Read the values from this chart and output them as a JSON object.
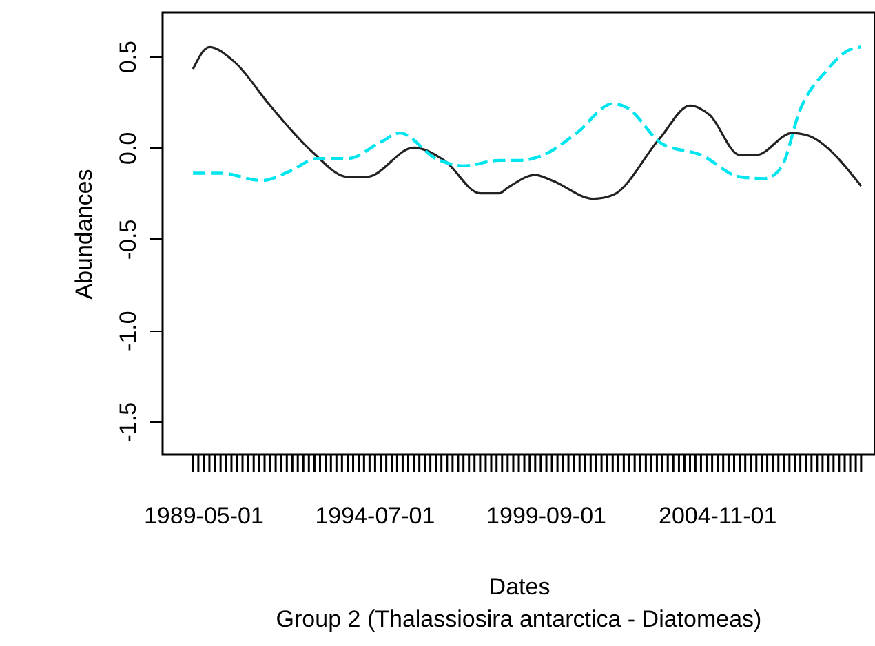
{
  "chart_data": {
    "type": "line",
    "subtitle": "Group 2 (Thalassiosira antarctica - Diatomeas)",
    "xlabel": "Dates",
    "ylabel": "Abundances",
    "xlim": [
      "1988-02",
      "2009-08"
    ],
    "ylim": [
      -1.68,
      0.74
    ],
    "yticks": [
      {
        "value": 0.5,
        "label": "0.5"
      },
      {
        "value": 0,
        "label": "0.0"
      },
      {
        "value": -0.5,
        "label": "-0.5"
      },
      {
        "value": -1,
        "label": "-1.0"
      },
      {
        "value": -1.5,
        "label": "-1.5"
      }
    ],
    "xticks": [
      {
        "value": "1989-01",
        "label": null
      },
      {
        "value": "1989-03",
        "label": null
      },
      "1989-05-01",
      {
        "value": "1989-07",
        "label": null
      },
      {
        "value": "1989-09",
        "label": null
      },
      {
        "value": "1989-11",
        "label": null
      },
      {
        "value": "1990-01",
        "label": null
      },
      {
        "value": "1990-03",
        "label": null
      },
      {
        "value": "1990-05",
        "label": null
      },
      {
        "value": "1990-07",
        "label": null
      },
      {
        "value": "1990-09",
        "label": null
      },
      {
        "value": "1990-11",
        "label": null
      },
      {
        "value": "1991-01",
        "label": null
      },
      {
        "value": "1991-03",
        "label": null
      },
      {
        "value": "1991-05",
        "label": null
      },
      {
        "value": "1991-07",
        "label": null
      },
      {
        "value": "1991-09",
        "label": null
      },
      {
        "value": "1991-11",
        "label": null
      },
      {
        "value": "1992-01",
        "label": null
      },
      {
        "value": "1992-03",
        "label": null
      },
      {
        "value": "1992-05",
        "label": null
      },
      {
        "value": "1992-07",
        "label": null
      },
      {
        "value": "1992-09",
        "label": null
      },
      {
        "value": "1992-11",
        "label": null
      },
      {
        "value": "1993-01",
        "label": null
      },
      {
        "value": "1993-03",
        "label": null
      },
      {
        "value": "1993-05",
        "label": null
      },
      {
        "value": "1993-07",
        "label": null
      },
      {
        "value": "1993-09",
        "label": null
      },
      {
        "value": "1993-11",
        "label": null
      },
      {
        "value": "1994-01",
        "label": null
      },
      {
        "value": "1994-03",
        "label": null
      },
      {
        "value": "1994-05",
        "label": null
      },
      "1994-07-01",
      {
        "value": "1994-09",
        "label": null
      },
      {
        "value": "1994-11",
        "label": null
      },
      {
        "value": "1995-01",
        "label": null
      },
      {
        "value": "1995-03",
        "label": null
      },
      {
        "value": "1995-05",
        "label": null
      },
      {
        "value": "1995-07",
        "label": null
      },
      {
        "value": "1995-09",
        "label": null
      },
      {
        "value": "1995-11",
        "label": null
      },
      {
        "value": "1996-01",
        "label": null
      },
      {
        "value": "1996-03",
        "label": null
      },
      {
        "value": "1996-05",
        "label": null
      },
      {
        "value": "1996-07",
        "label": null
      },
      {
        "value": "1996-09",
        "label": null
      },
      {
        "value": "1996-11",
        "label": null
      },
      {
        "value": "1997-01",
        "label": null
      },
      {
        "value": "1997-03",
        "label": null
      },
      {
        "value": "1997-05",
        "label": null
      },
      {
        "value": "1997-07",
        "label": null
      },
      {
        "value": "1997-09",
        "label": null
      },
      {
        "value": "1997-11",
        "label": null
      },
      {
        "value": "1998-01",
        "label": null
      },
      {
        "value": "1998-03",
        "label": null
      },
      {
        "value": "1998-05",
        "label": null
      },
      {
        "value": "1998-07",
        "label": null
      },
      {
        "value": "1998-09",
        "label": null
      },
      {
        "value": "1998-11",
        "label": null
      },
      {
        "value": "1999-01",
        "label": null
      },
      {
        "value": "1999-03",
        "label": null
      },
      {
        "value": "1999-05",
        "label": null
      },
      {
        "value": "1999-07",
        "label": null
      },
      "1999-09-01",
      {
        "value": "1999-11",
        "label": null
      },
      {
        "value": "2000-01",
        "label": null
      },
      {
        "value": "2000-03",
        "label": null
      },
      {
        "value": "2000-05",
        "label": null
      },
      {
        "value": "2000-07",
        "label": null
      },
      {
        "value": "2000-09",
        "label": null
      },
      {
        "value": "2000-11",
        "label": null
      },
      {
        "value": "2001-01",
        "label": null
      },
      {
        "value": "2001-03",
        "label": null
      },
      {
        "value": "2001-05",
        "label": null
      },
      {
        "value": "2001-07",
        "label": null
      },
      {
        "value": "2001-09",
        "label": null
      },
      {
        "value": "2001-11",
        "label": null
      },
      {
        "value": "2002-01",
        "label": null
      },
      {
        "value": "2002-03",
        "label": null
      },
      {
        "value": "2002-05",
        "label": null
      },
      {
        "value": "2002-07",
        "label": null
      },
      {
        "value": "2002-09",
        "label": null
      },
      {
        "value": "2002-11",
        "label": null
      },
      {
        "value": "2003-01",
        "label": null
      },
      {
        "value": "2003-03",
        "label": null
      },
      {
        "value": "2003-05",
        "label": null
      },
      {
        "value": "2003-07",
        "label": null
      },
      {
        "value": "2003-09",
        "label": null
      },
      {
        "value": "2003-11",
        "label": null
      },
      {
        "value": "2004-01",
        "label": null
      },
      {
        "value": "2004-03",
        "label": null
      },
      {
        "value": "2004-05",
        "label": null
      },
      {
        "value": "2004-07",
        "label": null
      },
      {
        "value": "2004-09",
        "label": null
      },
      "2004-11-01",
      {
        "value": "2005-01",
        "label": null
      },
      {
        "value": "2005-03",
        "label": null
      },
      {
        "value": "2005-05",
        "label": null
      },
      {
        "value": "2005-07",
        "label": null
      },
      {
        "value": "2005-09",
        "label": null
      },
      {
        "value": "2005-11",
        "label": null
      },
      {
        "value": "2006-01",
        "label": null
      },
      {
        "value": "2006-03",
        "label": null
      },
      {
        "value": "2006-05",
        "label": null
      },
      {
        "value": "2006-07",
        "label": null
      },
      {
        "value": "2006-09",
        "label": null
      },
      {
        "value": "2006-11",
        "label": null
      },
      {
        "value": "2007-01",
        "label": null
      },
      {
        "value": "2007-03",
        "label": null
      },
      {
        "value": "2007-05",
        "label": null
      },
      {
        "value": "2007-07",
        "label": null
      },
      {
        "value": "2007-09",
        "label": null
      },
      {
        "value": "2007-11",
        "label": null
      },
      {
        "value": "2008-01",
        "label": null
      },
      {
        "value": "2008-03",
        "label": null
      },
      {
        "value": "2008-05",
        "label": null
      },
      {
        "value": "2008-07",
        "label": null
      },
      {
        "value": "2008-09",
        "label": null
      },
      {
        "value": "2008-11",
        "label": null
      },
      {
        "value": "2009-01",
        "label": null
      },
      {
        "value": "2009-03",
        "label": null
      }
    ],
    "series": [
      {
        "color": "#222222",
        "line_style": "solid",
        "x": [
          "1989-01",
          "1989-07",
          "1990-04",
          "1991-05",
          "1992-08",
          "1993-09",
          "1994-04",
          "1995-09",
          "1996-08",
          "1997-09",
          "1998-04",
          "1998-07",
          "1999-05",
          "1999-11",
          "2001-02",
          "2001-09",
          "2003-02",
          "2004-01",
          "2004-08",
          "2005-07",
          "2006-01",
          "2007-02",
          "2007-07",
          "2009-03"
        ],
        "values": [
          0.43,
          0.55,
          0.47,
          0.23,
          -0.02,
          -0.16,
          -0.16,
          0.0,
          -0.07,
          -0.25,
          -0.25,
          -0.22,
          -0.15,
          -0.18,
          -0.28,
          -0.26,
          0.05,
          0.23,
          0.18,
          -0.04,
          -0.04,
          0.08,
          0.07,
          -0.21
        ]
      },
      {
        "color": "#00e5ee",
        "line_style": "dashed",
        "x": [
          "1989-01",
          "1989-11",
          "1991-02",
          "1991-12",
          "1992-10",
          "1993-09",
          "1994-09",
          "1995-04",
          "1996-05",
          "1997-03",
          "1998-04",
          "1998-11",
          "1999-08",
          "2000-08",
          "2001-09",
          "2002-02",
          "2003-03",
          "2004-05",
          "2005-07",
          "2006-04",
          "2006-10",
          "2007-05",
          "2008-03",
          "2008-10",
          "2009-03"
        ],
        "values": [
          -0.14,
          -0.14,
          -0.18,
          -0.13,
          -0.06,
          -0.06,
          0.03,
          0.08,
          -0.06,
          -0.1,
          -0.07,
          -0.07,
          -0.04,
          0.08,
          0.24,
          0.22,
          0.02,
          -0.04,
          -0.16,
          -0.17,
          -0.11,
          0.21,
          0.43,
          0.53,
          0.55
        ]
      }
    ]
  }
}
